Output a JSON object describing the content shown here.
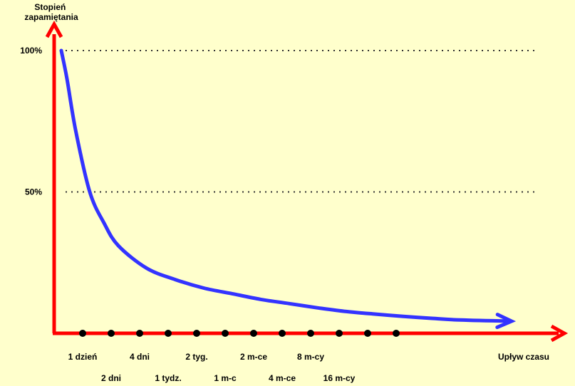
{
  "chart_data": {
    "type": "line",
    "ylabel": "Stopień zapamiętania",
    "xlabel": "Upływ czasu",
    "y_ticks": [
      {
        "value": 100,
        "label": "100%"
      },
      {
        "value": 50,
        "label": "50%"
      }
    ],
    "ylim": [
      0,
      100
    ],
    "grid": "dotted horizontal lines at 100% and 50%",
    "x_ticks": [
      {
        "label": "1 dzień",
        "row": 1
      },
      {
        "label": "2 dni",
        "row": 2
      },
      {
        "label": "4 dni",
        "row": 1
      },
      {
        "label": "1 tydz.",
        "row": 2
      },
      {
        "label": "2 tyg.",
        "row": 1
      },
      {
        "label": "1 m-c",
        "row": 2
      },
      {
        "label": "2 m-ce",
        "row": 1
      },
      {
        "label": "4 m-ce",
        "row": 2
      },
      {
        "label": "8 m-cy",
        "row": 1
      },
      {
        "label": "16 m-cy",
        "row": 2
      },
      {
        "label": "",
        "row": 0
      },
      {
        "label": "",
        "row": 0
      }
    ],
    "series": [
      {
        "color": "#3333ff",
        "points": [
          {
            "x": 0,
            "y": 100
          },
          {
            "x": 0.2,
            "y": 90
          },
          {
            "x": 0.5,
            "y": 72
          },
          {
            "x": 1,
            "y": 50
          },
          {
            "x": 1.5,
            "y": 39
          },
          {
            "x": 2,
            "y": 31
          },
          {
            "x": 3,
            "y": 23
          },
          {
            "x": 4,
            "y": 19
          },
          {
            "x": 5,
            "y": 16
          },
          {
            "x": 6,
            "y": 14
          },
          {
            "x": 7,
            "y": 12
          },
          {
            "x": 8,
            "y": 10.5
          },
          {
            "x": 9,
            "y": 9
          },
          {
            "x": 10,
            "y": 7.7
          },
          {
            "x": 11,
            "y": 6.8
          },
          {
            "x": 12,
            "y": 6
          },
          {
            "x": 13,
            "y": 5.3
          },
          {
            "x": 14,
            "y": 4.7
          },
          {
            "x": 15.7,
            "y": 4.3
          }
        ]
      }
    ],
    "colors": {
      "axis": "#ff0000",
      "curve": "#3333ff",
      "grid": "#333333",
      "background": "#ffffcc",
      "tick_marker": "#000000"
    }
  }
}
